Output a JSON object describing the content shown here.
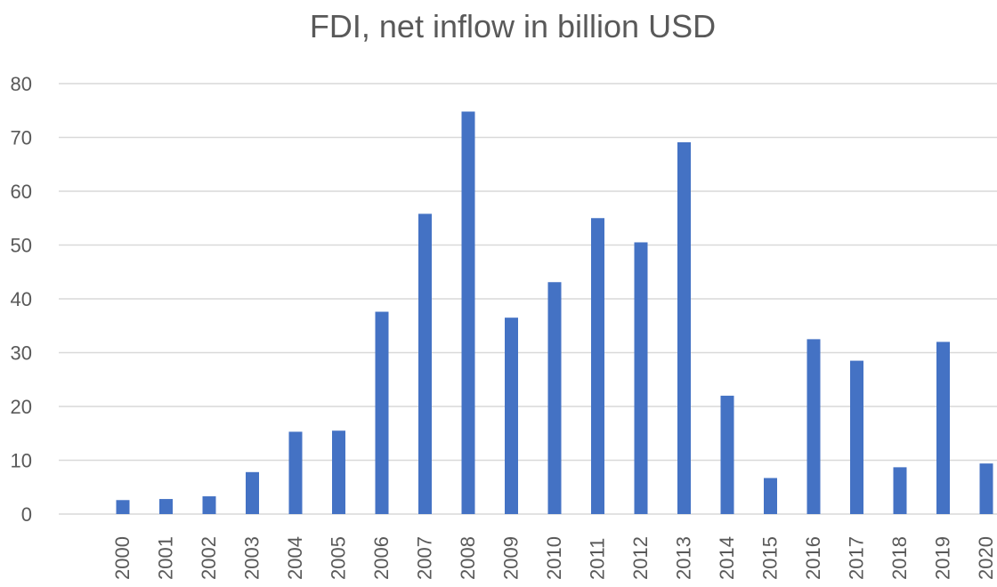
{
  "chart_data": {
    "type": "bar",
    "title": "FDI, net inflow in billion USD",
    "categories": [
      "2000",
      "2001",
      "2002",
      "2003",
      "2004",
      "2005",
      "2006",
      "2007",
      "2008",
      "2009",
      "2010",
      "2011",
      "2012",
      "2013",
      "2014",
      "2015",
      "2016",
      "2017",
      "2018",
      "2019",
      "2020"
    ],
    "values": [
      2.6,
      2.8,
      3.3,
      7.8,
      15.3,
      15.5,
      37.6,
      55.8,
      74.8,
      36.5,
      43.1,
      55.0,
      50.5,
      69.1,
      22.0,
      6.7,
      32.5,
      28.5,
      8.7,
      32.0,
      9.4
    ],
    "ylim": [
      0,
      80
    ],
    "yticks": [
      0,
      10,
      20,
      30,
      40,
      50,
      60,
      70,
      80
    ],
    "xlabel": "",
    "ylabel": "",
    "grid": true,
    "bar_color": "#4472C4"
  }
}
